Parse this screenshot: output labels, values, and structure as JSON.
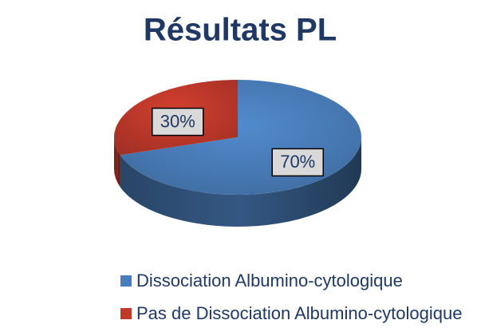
{
  "chart_data": {
    "type": "pie",
    "title": "Résultats PL",
    "categories": [
      "Dissociation Albumino-cytologique",
      "Pas de Dissociation Albumino-cytologique"
    ],
    "values": [
      70,
      30
    ],
    "value_labels": [
      "70%",
      "30%"
    ],
    "colors": [
      "#4a7ebb",
      "#c0392b"
    ],
    "legend": "bottom",
    "style": "3d"
  }
}
